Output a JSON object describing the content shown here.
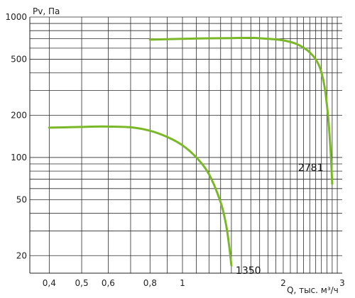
{
  "chart_data": {
    "type": "line",
    "xlabel": "Q, тыс. м³/ч",
    "ylabel": "Pv, Па",
    "x_scale": "log",
    "y_scale": "log",
    "xlim": [
      0.35,
      3.0
    ],
    "ylim": [
      15,
      1000
    ],
    "grid": true,
    "x_grid": [
      0.4,
      0.5,
      0.6,
      0.7,
      0.8,
      0.9,
      1,
      1.1,
      1.2,
      1.3,
      1.4,
      1.5,
      1.6,
      1.7,
      1.8,
      1.9,
      2,
      2.1,
      2.2,
      2.3,
      2.4,
      2.5,
      2.6,
      2.7,
      2.8,
      2.9
    ],
    "y_grid": [
      20,
      30,
      40,
      50,
      60,
      70,
      80,
      90,
      100,
      200,
      300,
      400,
      500,
      600,
      700,
      800,
      900,
      1000
    ],
    "x_ticks": [
      {
        "value": 0.4,
        "label": "0,4"
      },
      {
        "value": 0.5,
        "label": "0,5"
      },
      {
        "value": 0.6,
        "label": "0,6"
      },
      {
        "value": 0.8,
        "label": "0,8"
      },
      {
        "value": 1,
        "label": "1"
      },
      {
        "value": 2,
        "label": "2"
      },
      {
        "value": 3,
        "label": "3"
      }
    ],
    "y_ticks": [
      {
        "value": 20,
        "label": "20"
      },
      {
        "value": 50,
        "label": "50"
      },
      {
        "value": 100,
        "label": "100"
      },
      {
        "value": 200,
        "label": "200"
      },
      {
        "value": 500,
        "label": "500"
      },
      {
        "value": 1000,
        "label": "1000"
      }
    ],
    "line_color": "#7ab828",
    "series": [
      {
        "label": "1350",
        "points": [
          [
            0.4,
            163
          ],
          [
            0.45,
            164
          ],
          [
            0.5,
            165
          ],
          [
            0.55,
            166
          ],
          [
            0.6,
            166
          ],
          [
            0.7,
            164
          ],
          [
            0.8,
            155
          ],
          [
            0.9,
            140
          ],
          [
            1.0,
            122
          ],
          [
            1.1,
            100
          ],
          [
            1.2,
            76
          ],
          [
            1.3,
            48
          ],
          [
            1.35,
            33
          ],
          [
            1.38,
            23
          ],
          [
            1.4,
            17
          ]
        ]
      },
      {
        "label": "2781",
        "points": [
          [
            0.8,
            690
          ],
          [
            0.9,
            696
          ],
          [
            1.0,
            700
          ],
          [
            1.2,
            705
          ],
          [
            1.4,
            708
          ],
          [
            1.6,
            710
          ],
          [
            1.8,
            700
          ],
          [
            2.0,
            682
          ],
          [
            2.2,
            640
          ],
          [
            2.4,
            560
          ],
          [
            2.55,
            460
          ],
          [
            2.65,
            330
          ],
          [
            2.72,
            200
          ],
          [
            2.77,
            110
          ],
          [
            2.8,
            65
          ]
        ]
      }
    ]
  }
}
